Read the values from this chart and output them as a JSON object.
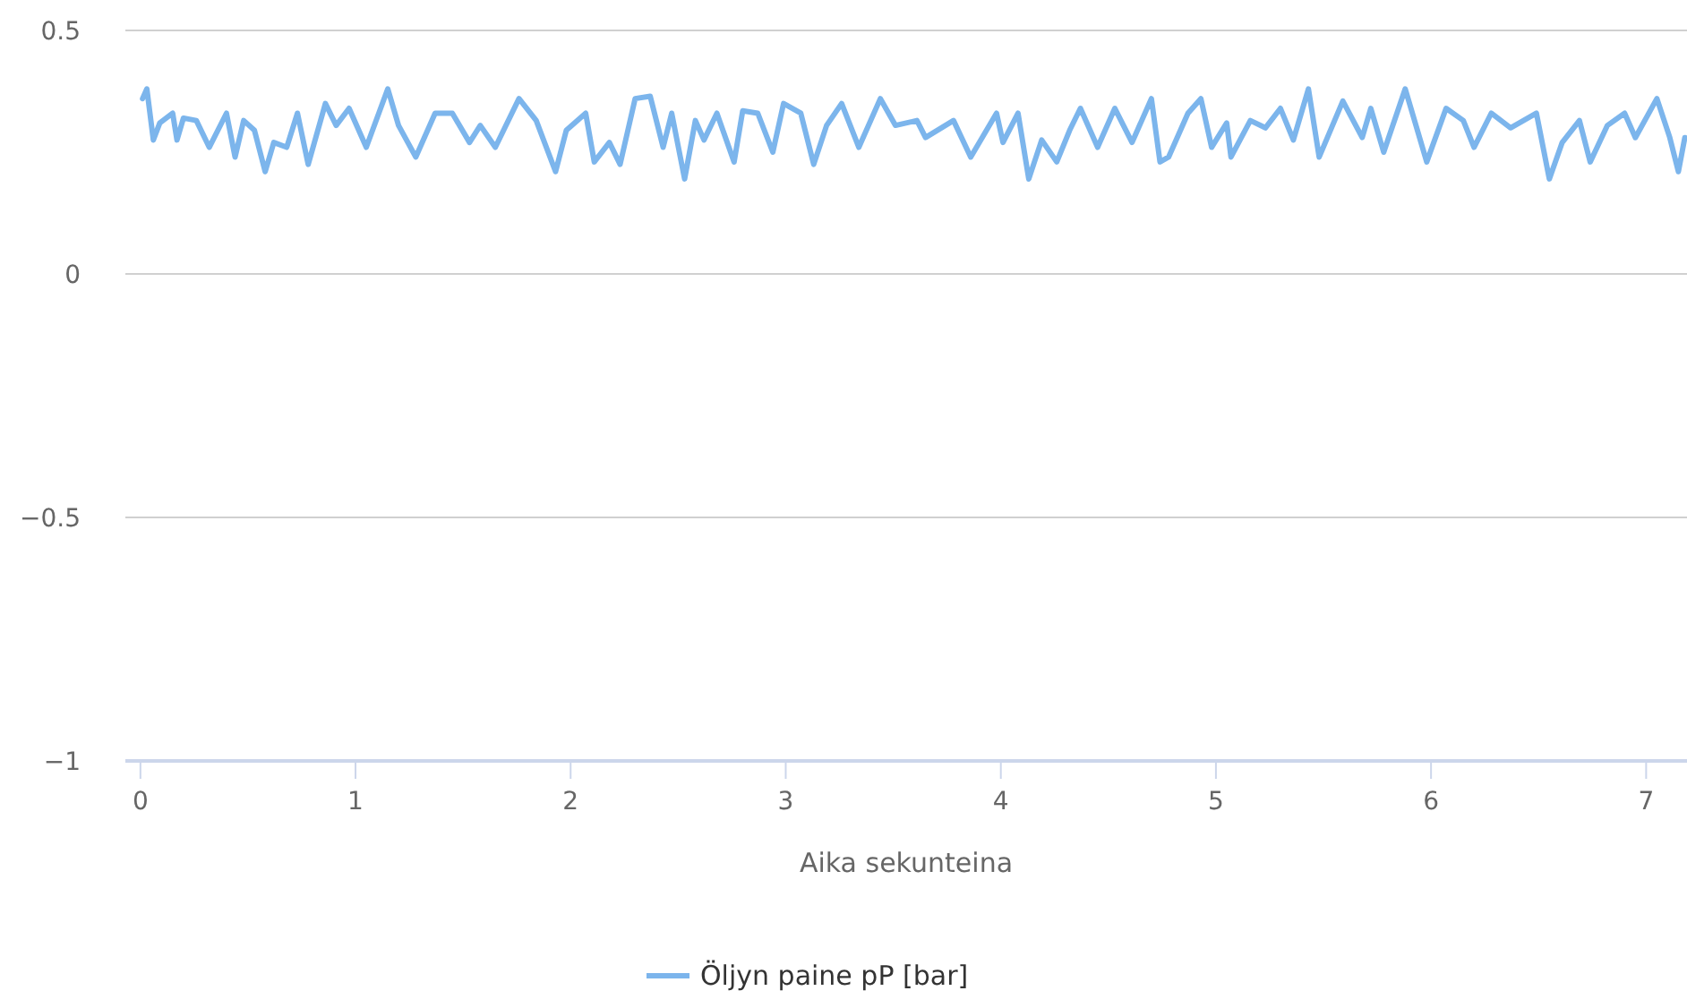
{
  "chart_data": {
    "type": "line",
    "xlabel": "Aika sekunteina",
    "xlim": [
      -0.07,
      7.19
    ],
    "xticks": [
      0,
      1,
      2,
      3,
      4,
      5,
      6,
      7
    ],
    "ylim": [
      -1,
      0.5
    ],
    "yticks": [
      {
        "value": -1,
        "label": "−1"
      },
      {
        "value": -0.5,
        "label": "−0.5"
      },
      0,
      0.5
    ],
    "grid": "y",
    "legend": "bottom",
    "marker": "none",
    "line_style": "solid",
    "series": [
      {
        "name": "Öljyn paine pP [bar]",
        "color": "#7cb5ec",
        "x": [
          0.01,
          0.03,
          0.06,
          0.09,
          0.15,
          0.17,
          0.2,
          0.26,
          0.32,
          0.4,
          0.44,
          0.48,
          0.53,
          0.58,
          0.62,
          0.68,
          0.73,
          0.78,
          0.86,
          0.91,
          0.97,
          1.05,
          1.15,
          1.2,
          1.28,
          1.37,
          1.45,
          1.53,
          1.58,
          1.65,
          1.76,
          1.84,
          1.93,
          1.98,
          2.07,
          2.11,
          2.18,
          2.23,
          2.3,
          2.37,
          2.43,
          2.47,
          2.53,
          2.58,
          2.62,
          2.68,
          2.76,
          2.8,
          2.87,
          2.94,
          2.99,
          3.07,
          3.13,
          3.19,
          3.26,
          3.34,
          3.44,
          3.51,
          3.61,
          3.65,
          3.78,
          3.86,
          3.98,
          4.01,
          4.08,
          4.13,
          4.19,
          4.26,
          4.32,
          4.37,
          4.45,
          4.53,
          4.61,
          4.7,
          4.74,
          4.78,
          4.87,
          4.93,
          4.98,
          5.05,
          5.07,
          5.16,
          5.23,
          5.3,
          5.36,
          5.43,
          5.48,
          5.59,
          5.68,
          5.72,
          5.78,
          5.88,
          5.98,
          6.07,
          6.15,
          6.2,
          6.28,
          6.37,
          6.49,
          6.55,
          6.61,
          6.69,
          6.74,
          6.82,
          6.9,
          6.95,
          7.05,
          7.11,
          7.15,
          7.18
        ],
        "values": [
          0.36,
          0.38,
          0.275,
          0.31,
          0.33,
          0.275,
          0.32,
          0.315,
          0.26,
          0.33,
          0.24,
          0.315,
          0.295,
          0.21,
          0.27,
          0.26,
          0.33,
          0.225,
          0.35,
          0.305,
          0.34,
          0.26,
          0.38,
          0.305,
          0.24,
          0.33,
          0.33,
          0.27,
          0.305,
          0.26,
          0.36,
          0.315,
          0.21,
          0.295,
          0.33,
          0.23,
          0.27,
          0.225,
          0.36,
          0.365,
          0.26,
          0.33,
          0.195,
          0.315,
          0.275,
          0.33,
          0.23,
          0.335,
          0.33,
          0.25,
          0.35,
          0.33,
          0.225,
          0.305,
          0.35,
          0.26,
          0.36,
          0.305,
          0.315,
          0.28,
          0.315,
          0.24,
          0.33,
          0.27,
          0.33,
          0.195,
          0.275,
          0.23,
          0.295,
          0.34,
          0.26,
          0.34,
          0.27,
          0.36,
          0.23,
          0.24,
          0.33,
          0.36,
          0.26,
          0.31,
          0.24,
          0.315,
          0.3,
          0.34,
          0.275,
          0.38,
          0.24,
          0.355,
          0.28,
          0.34,
          0.25,
          0.38,
          0.23,
          0.34,
          0.315,
          0.26,
          0.33,
          0.3,
          0.33,
          0.195,
          0.27,
          0.315,
          0.23,
          0.305,
          0.33,
          0.28,
          0.36,
          0.28,
          0.21,
          0.28
        ]
      }
    ]
  }
}
